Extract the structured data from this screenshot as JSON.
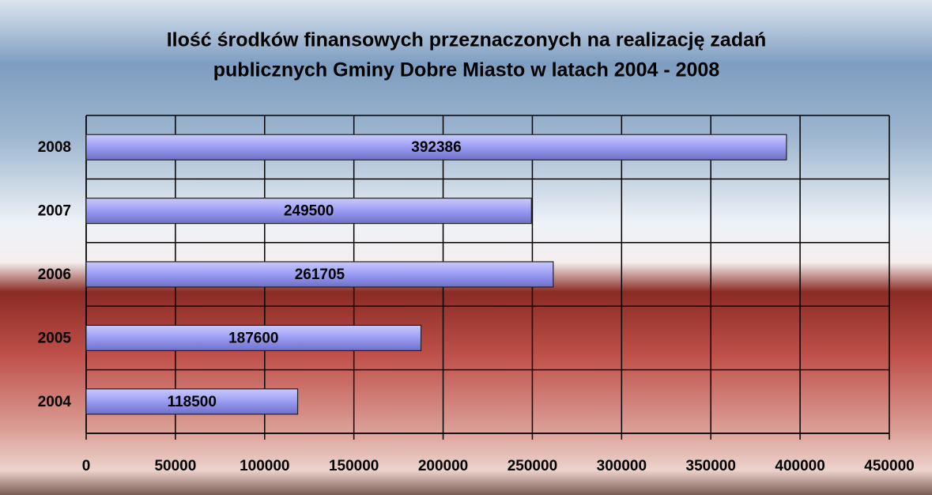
{
  "chart_data": {
    "type": "bar",
    "orientation": "horizontal",
    "title": [
      "Ilość środków finansowych przeznaczonych na realizację zadań",
      "publicznych Gminy Dobre Miasto w latach 2004 - 2008"
    ],
    "categories": [
      "2004",
      "2005",
      "2006",
      "2007",
      "2008"
    ],
    "values": [
      118500,
      187600,
      261705,
      249500,
      392386
    ],
    "color": "#9a9cf4",
    "xlim": [
      0,
      450000
    ],
    "xticks": [
      0,
      50000,
      100000,
      150000,
      200000,
      250000,
      300000,
      350000,
      400000,
      450000
    ],
    "grid": true
  }
}
